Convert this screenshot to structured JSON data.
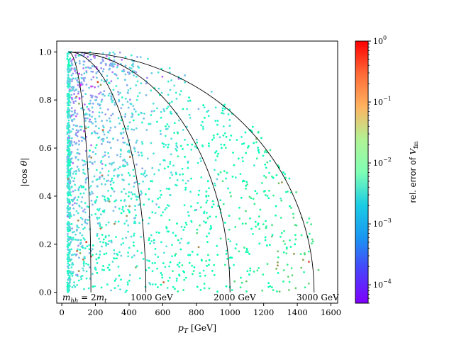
{
  "chart_data": {
    "type": "scatter",
    "xlabel": "p_T [GeV]",
    "ylabel": "|cos θ|",
    "xlim": [
      -30,
      1640
    ],
    "ylim": [
      -0.045,
      1.045
    ],
    "xticks": [
      0,
      200,
      400,
      600,
      800,
      1000,
      1200,
      1400,
      1600
    ],
    "yticks": [
      0.0,
      0.2,
      0.4,
      0.6,
      0.8,
      1.0
    ],
    "xtick_labels": [
      "0",
      "200",
      "400",
      "600",
      "800",
      "1000",
      "1200",
      "1400",
      "1600"
    ],
    "ytick_labels": [
      "0.0",
      "0.2",
      "0.4",
      "0.6",
      "0.8",
      "1.0"
    ],
    "colorbar": {
      "label": "rel. error of V_fin",
      "scale": "log",
      "range": [
        5e-05,
        1
      ],
      "colormap": "rainbow",
      "tick_labels": [
        "10^0",
        "10^-1",
        "10^-2",
        "10^-3",
        "10^-4"
      ]
    },
    "contours": [
      {
        "label": "m_hh = 2m_t",
        "mass_gev": 346
      },
      {
        "label": "1000 GeV",
        "mass_gev": 1000
      },
      {
        "label": "2000 GeV",
        "mass_gev": 2000
      },
      {
        "label": "3000 GeV",
        "mass_gev": 3000
      }
    ],
    "points_note": "about 2000 sampled phase-space points with p_T between about 30 and 1600 GeV and |cos θ| between 0 and 1; most errors lie between 1e-4 and 1e-2, with a few sparse outliers near 0.1"
  }
}
